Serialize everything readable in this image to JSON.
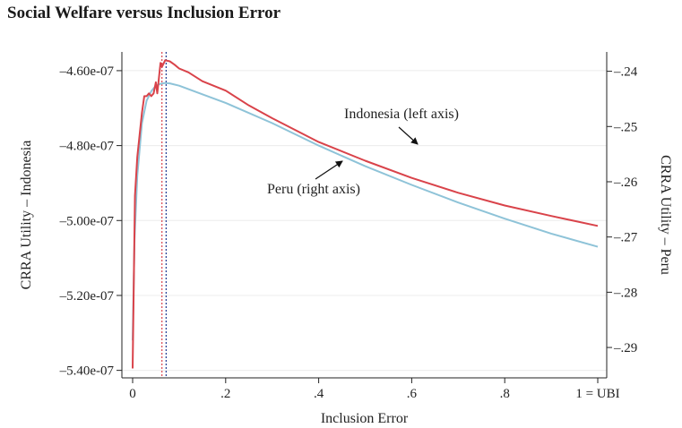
{
  "figure": {
    "title": "Social Welfare versus Inclusion Error"
  },
  "chart_data": {
    "type": "line",
    "title": "Social Welfare versus Inclusion Error",
    "xlabel": "Inclusion Error",
    "ylabel_left": "CRRA Utility – Indonesia",
    "ylabel_right": "CRRA Utility – Peru",
    "xlim": [
      0,
      1
    ],
    "ylim_left": [
      -5.42e-07,
      -4.55e-07
    ],
    "ylim_right": [
      -0.2955,
      -0.2365
    ],
    "x_ticks": [
      {
        "value": 0,
        "label": "0"
      },
      {
        "value": 0.2,
        "label": ".2"
      },
      {
        "value": 0.4,
        "label": ".4"
      },
      {
        "value": 0.6,
        "label": ".6"
      },
      {
        "value": 0.8,
        "label": ".8"
      },
      {
        "value": 1.0,
        "label": "1 = UBI"
      }
    ],
    "y_ticks_left": [
      {
        "value": -4.6e-07,
        "label": "–4.60e-07"
      },
      {
        "value": -4.8e-07,
        "label": "–4.80e-07"
      },
      {
        "value": -5e-07,
        "label": "–5.00e-07"
      },
      {
        "value": -5.2e-07,
        "label": "–5.20e-07"
      },
      {
        "value": -5.4e-07,
        "label": "–5.40e-07"
      }
    ],
    "y_ticks_right": [
      {
        "value": -0.24,
        "label": "–.24"
      },
      {
        "value": -0.25,
        "label": "–.25"
      },
      {
        "value": -0.26,
        "label": "–.26"
      },
      {
        "value": -0.27,
        "label": "–.27"
      },
      {
        "value": -0.28,
        "label": "–.28"
      },
      {
        "value": -0.29,
        "label": "–.29"
      }
    ],
    "grid": true,
    "series": [
      {
        "name": "Indonesia (left axis)",
        "axis": "left",
        "color": "#8ec3d8",
        "x": [
          0.0,
          0.004,
          0.01,
          0.02,
          0.03,
          0.04,
          0.05,
          0.06,
          0.07,
          0.08,
          0.1,
          0.15,
          0.2,
          0.3,
          0.4,
          0.5,
          0.6,
          0.7,
          0.8,
          0.9,
          1.0
        ],
        "y": [
          -5.32e-07,
          -5.05e-07,
          -4.88e-07,
          -4.74e-07,
          -4.68e-07,
          -4.655e-07,
          -4.64e-07,
          -4.635e-07,
          -4.633e-07,
          -4.634e-07,
          -4.64e-07,
          -4.663e-07,
          -4.686e-07,
          -4.74e-07,
          -4.8e-07,
          -4.855e-07,
          -4.905e-07,
          -4.952e-07,
          -4.995e-07,
          -5.035e-07,
          -5.07e-07
        ]
      },
      {
        "name": "Peru (right axis)",
        "axis": "right",
        "color": "#d9434a",
        "x": [
          0.0,
          0.005,
          0.01,
          0.015,
          0.02,
          0.025,
          0.03,
          0.035,
          0.04,
          0.045,
          0.05,
          0.053,
          0.06,
          0.063,
          0.07,
          0.08,
          0.09,
          0.1,
          0.12,
          0.15,
          0.2,
          0.25,
          0.3,
          0.4,
          0.5,
          0.6,
          0.7,
          0.8,
          0.9,
          1.0
        ],
        "y": [
          -0.2938,
          -0.2625,
          -0.2555,
          -0.2515,
          -0.2475,
          -0.2445,
          -0.2445,
          -0.244,
          -0.2445,
          -0.244,
          -0.242,
          -0.244,
          -0.2385,
          -0.2392,
          -0.238,
          -0.2382,
          -0.2388,
          -0.2395,
          -0.2402,
          -0.2418,
          -0.2435,
          -0.2462,
          -0.2485,
          -0.2528,
          -0.2562,
          -0.2593,
          -0.262,
          -0.2643,
          -0.2662,
          -0.268
        ]
      }
    ],
    "reference_lines": [
      {
        "x": 0.063,
        "color": "#d9434a",
        "style": "dotted"
      },
      {
        "x": 0.072,
        "color": "#1f3a93",
        "style": "dotted"
      }
    ],
    "annotations": [
      {
        "text": "Indonesia (left axis)",
        "series": "Indonesia (left axis)"
      },
      {
        "text": "Peru (right axis)",
        "series": "Peru (right axis)"
      }
    ]
  }
}
